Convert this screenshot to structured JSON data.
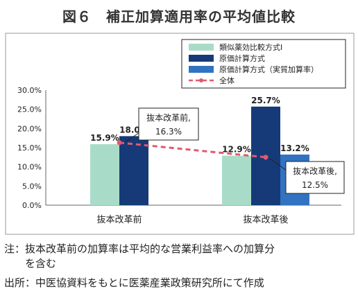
{
  "title": "図６　補正加算適用率の平均値比較",
  "chart_data": {
    "type": "bar",
    "categories": [
      "抜本改革前",
      "抜本改革後"
    ],
    "series": [
      {
        "name": "類似薬効比較方式Ⅰ",
        "values": [
          15.9,
          12.9
        ],
        "labels": [
          "15.9%",
          "12.9%"
        ],
        "color": "#a9dcc8"
      },
      {
        "name": "原価計算方式",
        "values": [
          18.0,
          25.7
        ],
        "labels": [
          "18.0%",
          "25.7%"
        ],
        "color": "#163a78"
      },
      {
        "name": "原価計算方式（実質加算率）",
        "values": [
          null,
          13.2
        ],
        "labels": [
          "",
          "13.2%"
        ],
        "color": "#3173c1"
      }
    ],
    "line_series": {
      "name": "全体",
      "values": [
        16.3,
        12.5
      ],
      "color": "#e05a6e",
      "style": "dashed"
    },
    "callouts": [
      {
        "line1": "抜本改革前,",
        "line2": "16.3%"
      },
      {
        "line1": "抜本改革後,",
        "line2": "12.5%"
      }
    ],
    "yticks": [
      "0.0%",
      "5.0%",
      "10.0%",
      "15.0%",
      "20.0%",
      "25.0%",
      "30.0%"
    ],
    "ylim": [
      0,
      30
    ],
    "legend_position": "top-right",
    "grid": false
  },
  "notes": [
    "注：抜本改革前の加算率は平均的な営業利益率への加算分",
    "　　を含む",
    "出所：中医協資料をもとに医薬産業政策研究所にて作成"
  ]
}
